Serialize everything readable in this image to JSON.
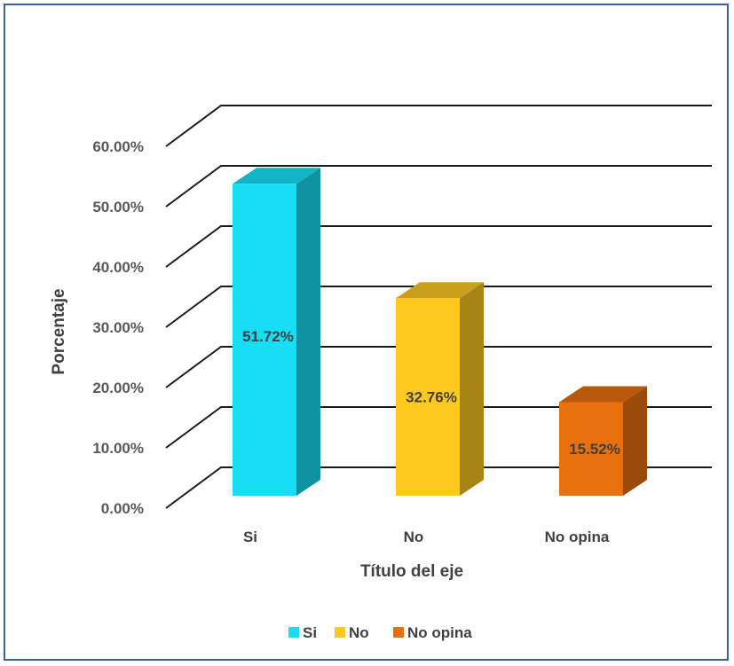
{
  "chart_data": {
    "type": "bar",
    "categories": [
      "Si",
      "No",
      "No opina"
    ],
    "values": [
      51.72,
      32.76,
      15.52
    ],
    "value_labels": [
      "51.72%",
      "32.76%",
      "15.52%"
    ],
    "ylabel": "Porcentaje",
    "xlabel": "Título del eje",
    "ylim": [
      0,
      60
    ],
    "y_ticks": [
      0,
      10,
      20,
      30,
      40,
      50,
      60
    ],
    "y_tick_labels": [
      "0.00%",
      "10.00%",
      "20.00%",
      "30.00%",
      "40.00%",
      "50.00%",
      "60.00%"
    ],
    "grid": true,
    "style": "3d-column",
    "legend": {
      "position": "bottom",
      "entries": [
        "Si",
        "No",
        "No opina"
      ]
    },
    "colors": [
      "#17DEF5",
      "#FFC91F",
      "#E8700E"
    ],
    "side_colors": [
      "#0E93A3",
      "#A88414",
      "#9A4A09"
    ],
    "top_colors": [
      "#14B4C7",
      "#C9A01A",
      "#B9580B"
    ]
  }
}
